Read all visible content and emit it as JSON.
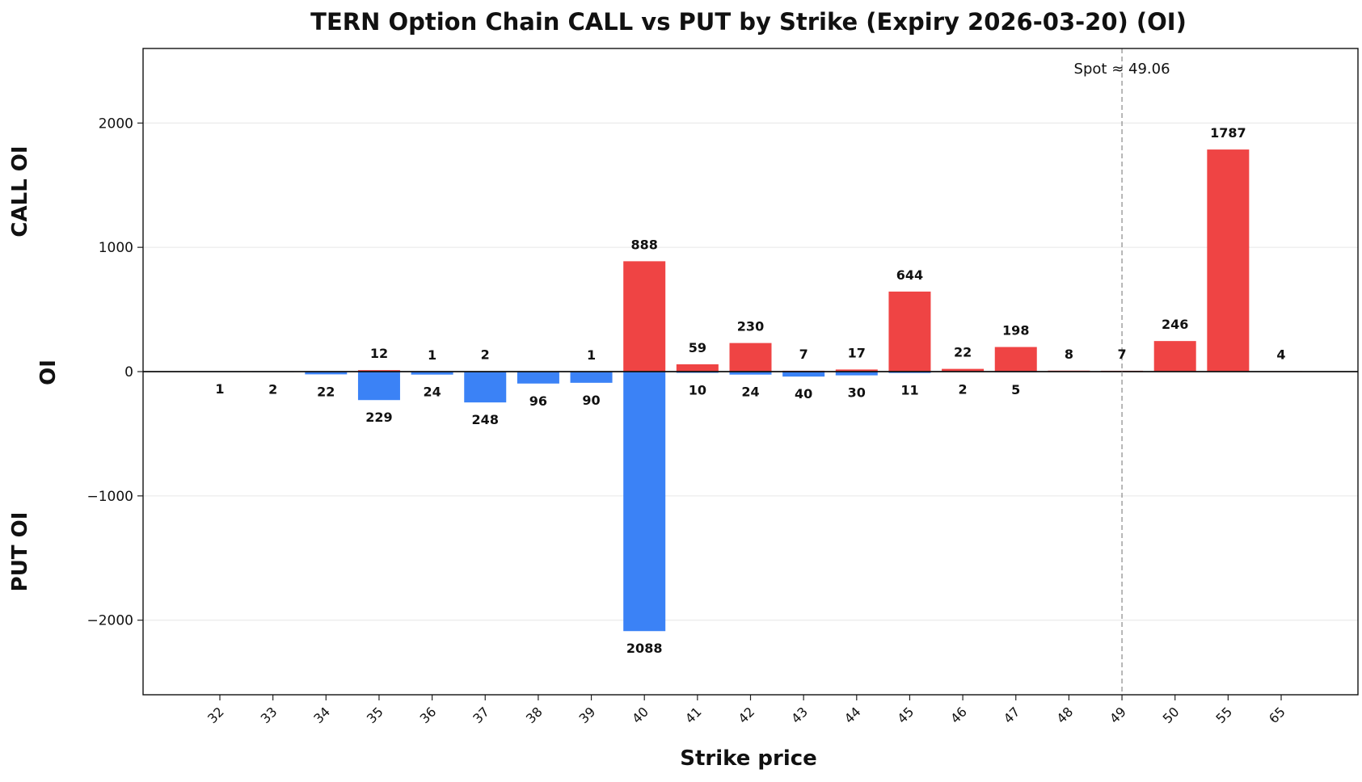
{
  "chart_data": {
    "type": "bar",
    "title": "TERN Option Chain CALL vs PUT by Strike (Expiry 2026-03-20) (OI)",
    "xlabel": "Strike price",
    "ylabel": "OI",
    "ylabel_top": "CALL OI",
    "ylabel_bottom": "PUT OI",
    "categories": [
      "32",
      "33",
      "34",
      "35",
      "36",
      "37",
      "38",
      "39",
      "40",
      "41",
      "42",
      "43",
      "44",
      "45",
      "46",
      "47",
      "48",
      "49",
      "50",
      "55",
      "65"
    ],
    "series": [
      {
        "name": "CALL",
        "color": "#ef4444",
        "values": [
          0,
          0,
          0,
          12,
          1,
          2,
          0,
          1,
          888,
          59,
          230,
          7,
          17,
          644,
          22,
          198,
          8,
          7,
          246,
          1787,
          4
        ]
      },
      {
        "name": "PUT",
        "color": "#3b82f6",
        "values": [
          1,
          2,
          22,
          229,
          24,
          248,
          96,
          90,
          2088,
          10,
          24,
          40,
          30,
          11,
          2,
          5,
          0,
          0,
          0,
          0,
          0
        ]
      }
    ],
    "call_labels": [
      "",
      "",
      "",
      "12",
      "1",
      "2",
      "",
      "1",
      "888",
      "59",
      "230",
      "7",
      "17",
      "644",
      "22",
      "198",
      "8",
      "7",
      "246",
      "1787",
      "4"
    ],
    "put_labels": [
      "1",
      "2",
      "22",
      "229",
      "24",
      "248",
      "96",
      "90",
      "2088",
      "10",
      "24",
      "40",
      "30",
      "11",
      "2",
      "5",
      "",
      "",
      "",
      "",
      ""
    ],
    "yticks": [
      -2000,
      -1000,
      0,
      1000,
      2000
    ],
    "ytick_labels": [
      "−2000",
      "−1000",
      "0",
      "1000",
      "2000"
    ],
    "ylim": [
      -2600,
      2600
    ],
    "grid": true,
    "spot": {
      "label": "Spot ≈ 49.06",
      "category": "49"
    }
  }
}
